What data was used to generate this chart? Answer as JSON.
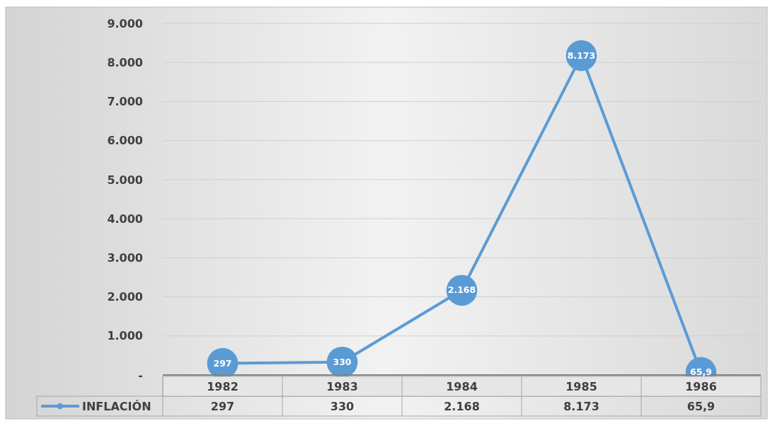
{
  "chart_data": {
    "type": "line",
    "categories": [
      "1982",
      "1983",
      "1984",
      "1985",
      "1986"
    ],
    "series": [
      {
        "name": "INFLACIÓN",
        "color": "#5b9bd5",
        "values": [
          297,
          330,
          2168,
          8173,
          65.9
        ],
        "value_labels": [
          "297",
          "330",
          "2.168",
          "8.173",
          "65,9"
        ]
      }
    ],
    "ylim": [
      0,
      9000
    ],
    "yticks": [
      {
        "value": 0,
        "label": "-"
      },
      {
        "value": 1000,
        "label": "1.000"
      },
      {
        "value": 2000,
        "label": "2.000"
      },
      {
        "value": 3000,
        "label": "3.000"
      },
      {
        "value": 4000,
        "label": "4.000"
      },
      {
        "value": 5000,
        "label": "5.000"
      },
      {
        "value": 6000,
        "label": "6.000"
      },
      {
        "value": 7000,
        "label": "7.000"
      },
      {
        "value": 8000,
        "label": "8.000"
      },
      {
        "value": 9000,
        "label": "9.000"
      }
    ],
    "grid": "y",
    "legend": "bottom",
    "marker": "circle",
    "line_style": "solid"
  }
}
